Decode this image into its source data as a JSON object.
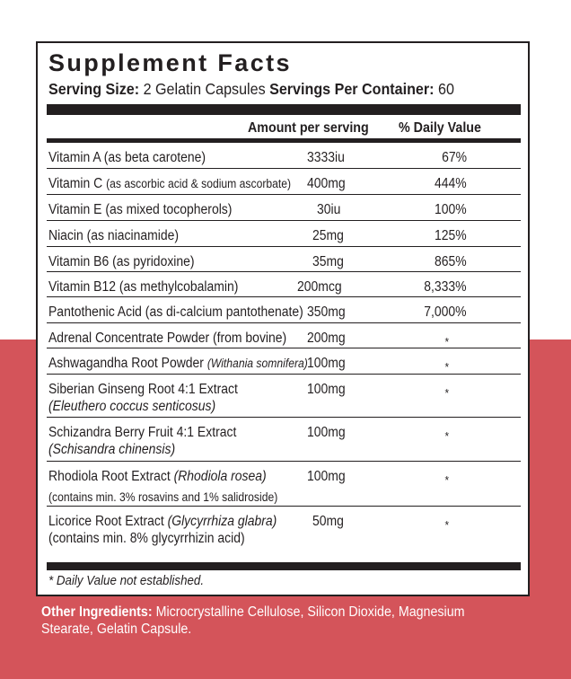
{
  "title": "Supplement Facts",
  "serving": {
    "size_label": "Serving Size:",
    "size_value": " 2 Gelatin Capsules ",
    "per_container_label": "Servings Per Container:",
    "per_container_value": " 60"
  },
  "columns": {
    "amount": "Amount per serving",
    "dv": "% Daily Value"
  },
  "rows": [
    {
      "name": "Vitamin A (as beta carotene)",
      "amount": "3333iu",
      "dv": "67%"
    },
    {
      "name": "Vitamin C ",
      "sub": "(as ascorbic acid & sodium ascorbate)",
      "amount": "400mg",
      "dv": "444%"
    },
    {
      "name": "Vitamin E (as mixed tocopherols)",
      "amount": "30iu",
      "dv": "100%"
    },
    {
      "name": "Niacin (as niacinamide)",
      "amount": "25mg",
      "dv": "125%"
    },
    {
      "name": "Vitamin B6 (as pyridoxine)",
      "amount": "35mg",
      "dv": "865%"
    },
    {
      "name": "Vitamin B12 (as methylcobalamin)",
      "amount": "200mcg",
      "dv": "8,333%"
    },
    {
      "name": "Pantothenic Acid (as di-calcium pantothenate)",
      "amount": "350mg",
      "dv": "7,000%"
    },
    {
      "name": "Adrenal Concentrate Powder (from bovine)",
      "amount": "200mg",
      "dv": "*"
    },
    {
      "name": "Ashwagandha Root Powder ",
      "sub_italic": "(Withania somnifera)",
      "amount": "100mg",
      "dv": "*"
    },
    {
      "name": "Siberian Ginseng Root 4:1 Extract",
      "line2_italic": "(Eleuthero coccus senticosus)",
      "amount": "100mg",
      "dv": "*"
    },
    {
      "name": "Schizandra Berry Fruit 4:1 Extract",
      "line2_italic": "(Schisandra chinensis)",
      "amount": "100mg",
      "dv": "*"
    },
    {
      "name": "Rhodiola Root Extract ",
      "name_italic": "(Rhodiola rosea)",
      "line2": "(contains min. 3% rosavins and 1% salidroside)",
      "amount": "100mg",
      "dv": "*"
    },
    {
      "name": "Licorice Root Extract ",
      "name_italic": "(Glycyrrhiza glabra)",
      "line2": "(contains min. 8% glycyrrhizin acid)",
      "amount": "50mg",
      "dv": "*"
    }
  ],
  "footnote": "* Daily Value not established.",
  "other_ingredients": {
    "label": "Other Ingredients:",
    "text": " Microcrystalline Cellulose, Silicon Dioxide, Magnesium Stearate, Gelatin Capsule."
  },
  "colors": {
    "background_band": "#d4545a",
    "ink": "#231f20"
  }
}
